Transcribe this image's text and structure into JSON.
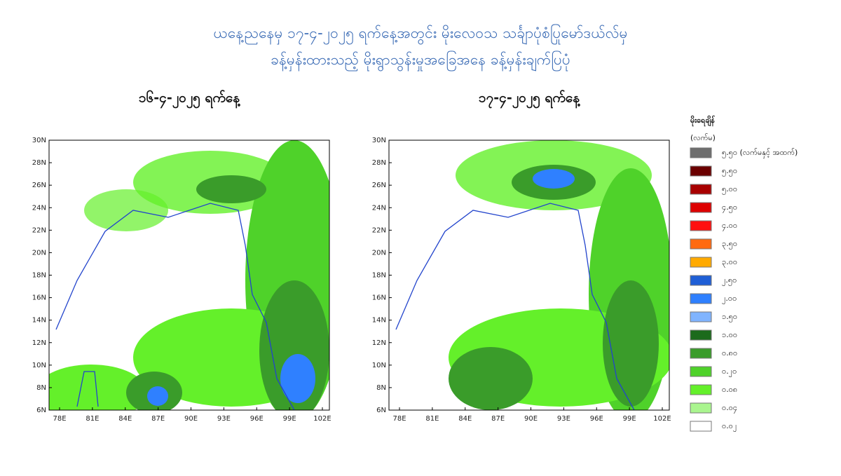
{
  "header": {
    "title_line1": "ယနေ့ညနေမှ ၁၇-၄-၂၀၂၅ ရက်နေ့အတွင်း မိုးလေဝသ သင်္ချာပုံစံပြုမော်ဒယ်လ်မှ",
    "title_line2": "ခန့်မှန်းထားသည့် မိုးရွာသွန်းမှုအခြေအနေ ခန့်မှန်းချက်ပြပုံ"
  },
  "maps": [
    {
      "title": "၁၆-၄-၂၀၂၅ ရက်နေ့"
    },
    {
      "title": "၁၇-၄-၂၀၂၅ ရက်နေ့"
    }
  ],
  "axes": {
    "yticks": [
      "30N",
      "28N",
      "26N",
      "24N",
      "22N",
      "20N",
      "18N",
      "16N",
      "14N",
      "12N",
      "10N",
      "8N",
      "6N"
    ],
    "xticks": [
      "78E",
      "81E",
      "84E",
      "87E",
      "90E",
      "93E",
      "96E",
      "99E",
      "102E"
    ]
  },
  "legend": {
    "title": "မိုးရေချိန်",
    "unit": "(လက်မ)",
    "items": [
      {
        "label": "၅.၅၀ (လက်မနှင့် အထက်)",
        "color": "#6e6e6e"
      },
      {
        "label": "၅.၅၀",
        "color": "#6b0000"
      },
      {
        "label": "၅.၀၀",
        "color": "#a80000"
      },
      {
        "label": "၄.၅၀",
        "color": "#dd0000"
      },
      {
        "label": "၄.၀၀",
        "color": "#ff1010"
      },
      {
        "label": "၃.၅၀",
        "color": "#ff6a10"
      },
      {
        "label": "၃.၀၀",
        "color": "#ffaa00"
      },
      {
        "label": "၂.၅၀",
        "color": "#1f5fd6"
      },
      {
        "label": "၂.၀၀",
        "color": "#2f80ff"
      },
      {
        "label": "၁.၅၀",
        "color": "#80b4ff"
      },
      {
        "label": "၁.၀၀",
        "color": "#1c6b1c"
      },
      {
        "label": "၀.၈၀",
        "color": "#3a9c2a"
      },
      {
        "label": "၀.၂၀",
        "color": "#4fd22a"
      },
      {
        "label": "၀.၀၈",
        "color": "#64f02a"
      },
      {
        "label": "၀.၀၄",
        "color": "#aaf58f"
      },
      {
        "label": "၀.၀၂",
        "color": "#ffffff"
      }
    ]
  }
}
